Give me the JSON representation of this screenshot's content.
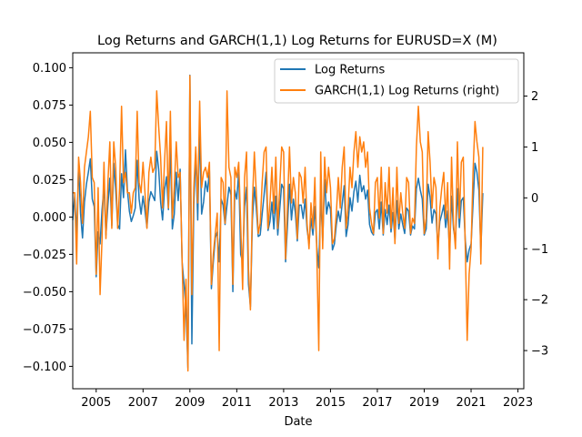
{
  "chart_data": {
    "type": "line",
    "title": "Log Returns and GARCH(1,1) Log Returns for EURUSD=X (M)",
    "xlabel": "Date",
    "ylabel": "",
    "ylabel_right": "",
    "x_ticks": [
      "2005",
      "2007",
      "2009",
      "2011",
      "2013",
      "2015",
      "2017",
      "2019",
      "2021",
      "2023"
    ],
    "x_range": [
      2004.0,
      2023.25
    ],
    "y_ticks_left": [
      "0.100",
      "0.075",
      "0.050",
      "0.025",
      "0.000",
      "−0.025",
      "−0.050",
      "−0.075",
      "−0.100"
    ],
    "y_ticks_right": [
      "2",
      "1",
      "0",
      "−1",
      "−2",
      "−3"
    ],
    "ylim_left": [
      -0.115,
      0.11
    ],
    "ylim_right": [
      -3.75,
      2.85
    ],
    "grid": false,
    "legend_position": "top-right",
    "series": [
      {
        "name": "Log Returns",
        "axis": "left",
        "color": "#1f77b4",
        "x_start": 2004.0,
        "x_step": 0.0833333,
        "values": [
          -0.002,
          0.014,
          -0.012,
          0.035,
          0.002,
          -0.014,
          0.01,
          0.022,
          0.03,
          0.039,
          0.012,
          0.007,
          -0.04,
          -0.01,
          -0.018,
          0.005,
          0.02,
          -0.012,
          0.008,
          0.026,
          -0.006,
          0.036,
          0.018,
          -0.005,
          -0.008,
          0.029,
          0.013,
          0.045,
          0.018,
          0.004,
          -0.003,
          0.001,
          0.006,
          0.038,
          0.012,
          0.002,
          0.014,
          0.004,
          -0.007,
          0.01,
          0.017,
          0.014,
          0.011,
          0.044,
          0.032,
          0.01,
          -0.002,
          0.018,
          0.027,
          0.005,
          0.046,
          -0.008,
          0.002,
          0.03,
          0.011,
          0.032,
          -0.03,
          -0.045,
          -0.062,
          -0.101,
          0.095,
          -0.085,
          0.008,
          0.043,
          -0.002,
          0.06,
          0.002,
          0.01,
          0.024,
          0.017,
          0.031,
          -0.048,
          -0.03,
          -0.014,
          -0.01,
          -0.03,
          0.012,
          0.008,
          -0.005,
          0.008,
          0.02,
          0.015,
          -0.05,
          0.018,
          0.012,
          0.03,
          -0.025,
          -0.03,
          0.007,
          0.02,
          -0.045,
          -0.06,
          -0.002,
          0.02,
          0.006,
          -0.013,
          -0.012,
          0.002,
          0.015,
          0.03,
          -0.009,
          -0.003,
          0.01,
          -0.008,
          0.014,
          -0.012,
          0.005,
          0.022,
          0.019,
          -0.03,
          -0.005,
          0.022,
          -0.002,
          0.012,
          0.003,
          -0.016,
          0.008,
          0.008,
          -0.001,
          0.012,
          -0.008,
          -0.018,
          -0.001,
          -0.012,
          0.007,
          -0.02,
          -0.034,
          0.014,
          -0.016,
          0.025,
          0.002,
          0.01,
          0.005,
          -0.022,
          -0.018,
          -0.005,
          0.004,
          -0.003,
          0.009,
          0.021,
          -0.013,
          -0.005,
          0.013,
          0.004,
          0.017,
          0.024,
          0.01,
          0.028,
          0.017,
          0.021,
          0.012,
          0.018,
          -0.005,
          -0.01,
          -0.012,
          0.003,
          0.005,
          -0.008,
          0.01,
          -0.012,
          0.005,
          -0.005,
          0.008,
          -0.01,
          0.003,
          -0.015,
          0.011,
          -0.008,
          0.002,
          -0.005,
          -0.011,
          0.006,
          0.004,
          -0.012,
          -0.006,
          -0.008,
          0.019,
          0.026,
          0.018,
          0.012,
          -0.012,
          -0.008,
          0.022,
          0.013,
          -0.004,
          0.005,
          0.002,
          -0.02,
          -0.003,
          0.002,
          0.008,
          -0.007,
          0.004,
          -0.024,
          0.014,
          -0.008,
          -0.016,
          0.019,
          -0.007,
          0.011,
          0.013,
          -0.015,
          -0.03,
          -0.022,
          -0.018,
          0.009,
          0.036,
          0.03,
          0.018,
          -0.022,
          0.016
        ]
      },
      {
        "name": "GARCH(1,1) Log Returns (right)",
        "axis": "right",
        "color": "#ff7f0e",
        "x_start": 2004.0,
        "x_step": 0.0833333,
        "values": [
          0.1,
          0.1,
          -1.3,
          0.8,
          0.3,
          -0.5,
          0.6,
          0.9,
          1.2,
          1.7,
          0.4,
          0.3,
          -1.5,
          0.2,
          -1.9,
          -0.8,
          0.7,
          -0.8,
          0.3,
          1.1,
          -0.6,
          1.1,
          0.6,
          -0.6,
          0.2,
          1.8,
          0.3,
          0.5,
          0.1,
          0.1,
          -0.3,
          0.1,
          0.2,
          1.7,
          0.3,
          0.1,
          0.7,
          0.1,
          -0.6,
          0.5,
          0.8,
          0.5,
          0.6,
          2.1,
          1.4,
          0.8,
          -0.2,
          0.7,
          1.5,
          -0.2,
          1.7,
          -0.4,
          0.2,
          1.1,
          0.4,
          0.5,
          -1.2,
          -2.8,
          -1.6,
          -3.4,
          2.4,
          -1.9,
          0.2,
          1.0,
          -0.1,
          1.9,
          0.2,
          0.5,
          0.6,
          0.4,
          0.7,
          -1.7,
          -1.1,
          -0.7,
          -0.3,
          -3.0,
          0.4,
          0.3,
          -0.5,
          2.1,
          0.6,
          0.4,
          -1.7,
          0.6,
          0.4,
          0.7,
          -0.5,
          -1.8,
          0.4,
          0.9,
          -1.4,
          -2.2,
          -0.1,
          0.9,
          0.1,
          -0.7,
          -0.5,
          0.3,
          0.9,
          1.0,
          -0.6,
          -0.1,
          0.6,
          -0.3,
          0.8,
          -0.6,
          0.2,
          1.0,
          0.9,
          -1.2,
          -0.1,
          1.0,
          -0.1,
          0.4,
          0.1,
          -0.8,
          0.5,
          0.4,
          -0.1,
          0.6,
          -0.5,
          -1.0,
          -0.1,
          -0.6,
          0.4,
          -1.1,
          -3.0,
          0.9,
          -1.0,
          0.8,
          0.1,
          0.6,
          0.2,
          -0.9,
          -0.8,
          -0.3,
          0.4,
          -0.2,
          0.6,
          1.0,
          -0.6,
          -0.2,
          0.6,
          0.2,
          0.9,
          1.3,
          0.6,
          1.2,
          0.9,
          1.1,
          0.6,
          0.9,
          -0.2,
          -0.5,
          -0.7,
          0.3,
          0.4,
          -0.4,
          0.6,
          -0.7,
          0.3,
          -0.3,
          0.6,
          -0.6,
          0.2,
          -0.9,
          0.6,
          -0.5,
          0.1,
          -0.3,
          -0.6,
          0.4,
          0.3,
          -0.7,
          -0.4,
          -0.5,
          1.0,
          1.8,
          1.1,
          0.9,
          -0.7,
          -0.4,
          1.3,
          0.7,
          -0.2,
          0.4,
          0.2,
          -1.2,
          -0.2,
          0.2,
          0.5,
          -0.4,
          0.3,
          -1.4,
          0.8,
          -0.5,
          -1.0,
          1.1,
          -0.4,
          0.7,
          0.8,
          -0.9,
          -2.8,
          -1.5,
          -1.0,
          0.5,
          1.5,
          1.1,
          0.8,
          -1.3,
          1.0
        ]
      }
    ]
  }
}
